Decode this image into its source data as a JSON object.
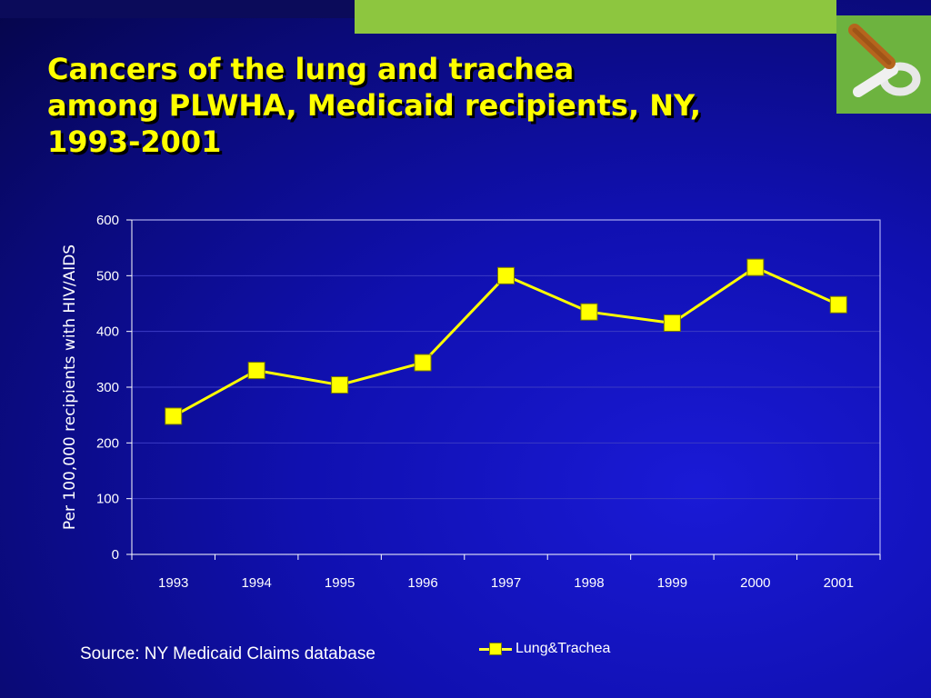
{
  "slide": {
    "title_lines": [
      "Cancers of the lung and trachea",
      "among PLWHA, Medicaid recipients, NY,",
      "1993-2001"
    ],
    "source": "Source: NY Medicaid Claims database",
    "colors": {
      "title": "#ffff00",
      "background": "#1010b0",
      "accent_green": "#8dc63f"
    },
    "logo_icon": "no-smoking-cigarette-icon"
  },
  "chart_data": {
    "type": "line",
    "title": "",
    "xlabel": "",
    "ylabel": "Per 100,000 recipients with HIV/AIDS",
    "categories": [
      "1993",
      "1994",
      "1995",
      "1996",
      "1997",
      "1998",
      "1999",
      "2000",
      "2001"
    ],
    "series": [
      {
        "name": "Lung&Trachea",
        "values": [
          248,
          330,
          304,
          344,
          500,
          435,
          415,
          515,
          448
        ],
        "color": "#ffff00"
      }
    ],
    "ylim": [
      0,
      600
    ],
    "yticks": [
      0,
      100,
      200,
      300,
      400,
      500,
      600
    ],
    "grid": true,
    "legend_position": "bottom"
  }
}
